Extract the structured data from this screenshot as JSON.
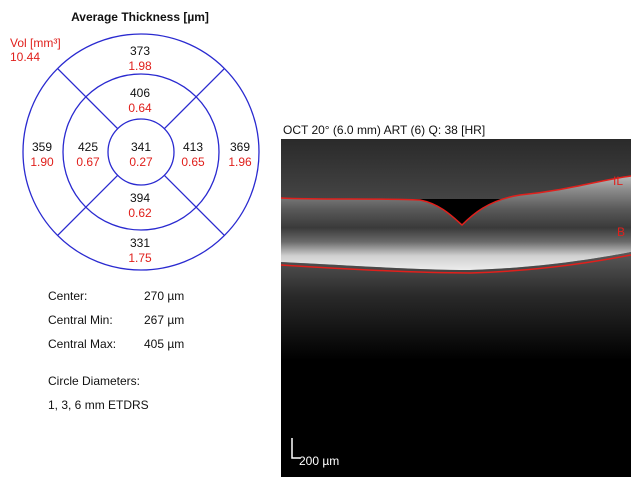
{
  "thickness_map": {
    "title": "Average Thickness [µm]",
    "volume_label": "Vol [mm³]",
    "volume": "10.44",
    "sectors": [
      {
        "thickness": "373",
        "volume": "1.98"
      },
      {
        "thickness": "406",
        "volume": "0.64"
      },
      {
        "thickness": "359",
        "volume": "1.90"
      },
      {
        "thickness": "425",
        "volume": "0.67"
      },
      {
        "thickness": "341",
        "volume": "0.27"
      },
      {
        "thickness": "413",
        "volume": "0.65"
      },
      {
        "thickness": "369",
        "volume": "1.96"
      },
      {
        "thickness": "394",
        "volume": "0.62"
      },
      {
        "thickness": "331",
        "volume": "1.75"
      }
    ]
  },
  "stats": [
    {
      "label": "Center:",
      "value": "270 µm"
    },
    {
      "label": "Central Min:",
      "value": "267 µm"
    },
    {
      "label": "Central Max:",
      "value": "405 µm"
    }
  ],
  "circle_diameters": {
    "label": "Circle Diameters:",
    "value": "1, 3, 6 mm ETDRS"
  },
  "oct": {
    "header": "OCT 20° (6.0 mm) ART (6) Q: 38 [HR]",
    "layer_labels": [
      "IL",
      "B"
    ],
    "scale_bar": "200 µm"
  }
}
